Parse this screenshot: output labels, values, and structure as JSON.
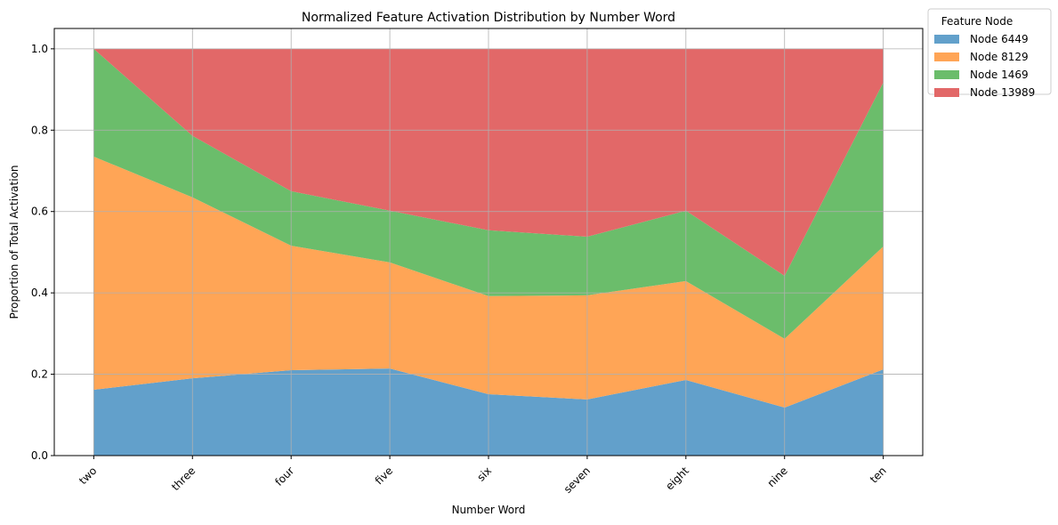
{
  "chart_data": {
    "type": "area",
    "stacked": true,
    "title": "Normalized Feature Activation Distribution by Number Word",
    "xlabel": "Number Word",
    "ylabel": "Proportion of Total Activation",
    "categories": [
      "two",
      "three",
      "four",
      "five",
      "six",
      "seven",
      "eight",
      "nine",
      "ten"
    ],
    "ylim": [
      0,
      1.05
    ],
    "yticks": [
      "0.0",
      "0.2",
      "0.4",
      "0.6",
      "0.8",
      "1.0"
    ],
    "ytick_values": [
      0,
      0.2,
      0.4,
      0.6,
      0.8,
      1.0
    ],
    "grid": true,
    "legend": {
      "title": "Feature Node",
      "placement": "outside-top-right"
    },
    "series": [
      {
        "name": "Node 6449",
        "color": "#62a0cb",
        "values": [
          0.162,
          0.19,
          0.21,
          0.214,
          0.151,
          0.138,
          0.186,
          0.118,
          0.212
        ]
      },
      {
        "name": "Node 8129",
        "color": "#ffa556",
        "values": [
          0.573,
          0.445,
          0.306,
          0.261,
          0.241,
          0.256,
          0.243,
          0.169,
          0.302
        ]
      },
      {
        "name": "Node 1469",
        "color": "#6bbd6b",
        "values": [
          0.265,
          0.151,
          0.134,
          0.127,
          0.162,
          0.144,
          0.173,
          0.155,
          0.403
        ]
      },
      {
        "name": "Node 13989",
        "color": "#e26868",
        "values": [
          0.0,
          0.214,
          0.35,
          0.398,
          0.446,
          0.462,
          0.398,
          0.558,
          0.083
        ]
      }
    ]
  }
}
